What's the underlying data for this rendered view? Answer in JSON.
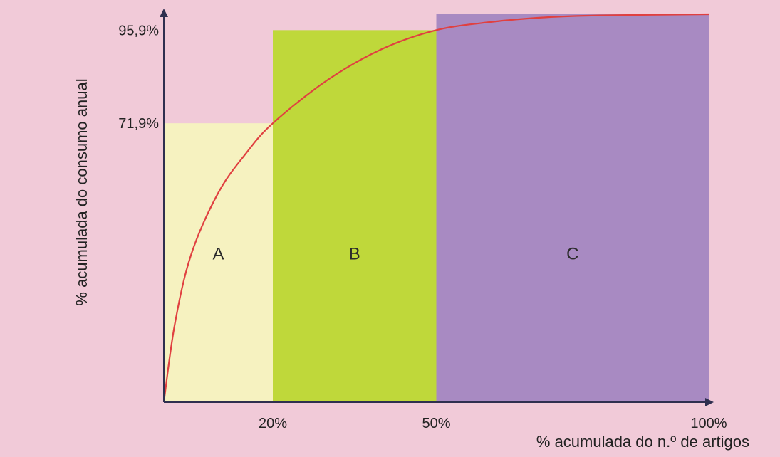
{
  "chart_data": {
    "type": "area",
    "title": "",
    "xlabel": "% acumulada do n.º de artigos",
    "ylabel": "% acumulada do consumo anual",
    "x_ticks": [
      {
        "value": 20,
        "label": "20%"
      },
      {
        "value": 50,
        "label": "50%"
      },
      {
        "value": 100,
        "label": "100%"
      }
    ],
    "y_ticks": [
      {
        "value": 71.9,
        "label": "71,9%"
      },
      {
        "value": 95.9,
        "label": "95,9%"
      }
    ],
    "regions": [
      {
        "label": "A",
        "x_range": [
          0,
          20
        ],
        "y_max": 71.9,
        "color": "#f6f2c0"
      },
      {
        "label": "B",
        "x_range": [
          20,
          50
        ],
        "y_max": 95.9,
        "color": "#bfd83a"
      },
      {
        "label": "C",
        "x_range": [
          50,
          100
        ],
        "y_max": 100,
        "color": "#a88ac2"
      }
    ],
    "curve": {
      "color": "#e04040",
      "points": [
        {
          "x": 0,
          "y": 0
        },
        {
          "x": 2,
          "y": 20
        },
        {
          "x": 5,
          "y": 38
        },
        {
          "x": 10,
          "y": 54
        },
        {
          "x": 15,
          "y": 64
        },
        {
          "x": 20,
          "y": 71.9
        },
        {
          "x": 30,
          "y": 83
        },
        {
          "x": 40,
          "y": 91
        },
        {
          "x": 50,
          "y": 95.9
        },
        {
          "x": 60,
          "y": 98
        },
        {
          "x": 70,
          "y": 99.2
        },
        {
          "x": 80,
          "y": 99.7
        },
        {
          "x": 100,
          "y": 100
        }
      ]
    },
    "xlim": [
      0,
      100
    ],
    "ylim": [
      0,
      100
    ],
    "grid": false,
    "legend": "none"
  }
}
